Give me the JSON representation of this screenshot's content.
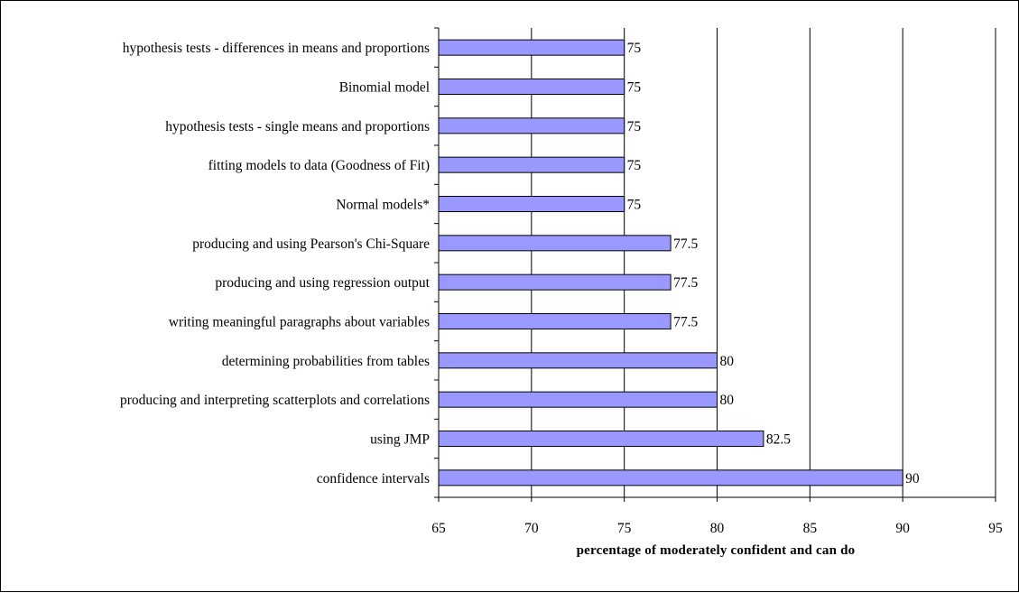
{
  "chart_data": {
    "type": "bar",
    "orientation": "horizontal",
    "categories": [
      "hypothesis tests - differences in means and proportions",
      "Binomial model",
      "hypothesis tests - single means and proportions",
      "fitting models to data (Goodness of Fit)",
      "Normal models*",
      "producing and using Pearson's Chi-Square",
      "producing and using regression output",
      "writing meaningful paragraphs about variables",
      "determining probabilities from tables",
      "producing and interpreting scatterplots and correlations",
      "using JMP",
      "confidence intervals"
    ],
    "values": [
      75,
      75,
      75,
      75,
      75,
      77.5,
      77.5,
      77.5,
      80,
      80,
      82.5,
      90
    ],
    "data_labels": [
      "75",
      "75",
      "75",
      "75",
      "75",
      "77.5",
      "77.5",
      "77.5",
      "80",
      "80",
      "82.5",
      "90"
    ],
    "xlabel": "percentage of moderately confident and can do",
    "xlim": [
      65,
      95
    ],
    "xticks": [
      "65",
      "70",
      "75",
      "80",
      "85",
      "90",
      "95"
    ],
    "grid": "vertical major gridlines",
    "legend": "none",
    "colors": {
      "bar_fill": "#9999ff",
      "bar_stroke": "#000000"
    }
  }
}
